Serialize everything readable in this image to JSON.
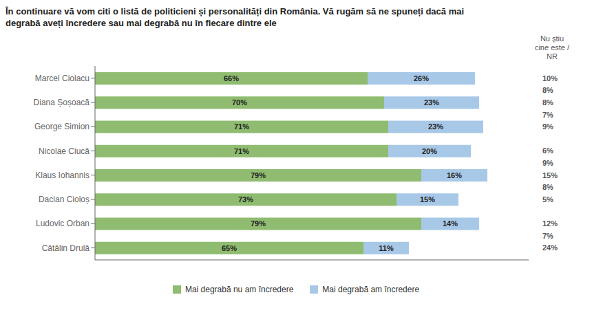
{
  "chart_data": {
    "type": "bar",
    "orientation": "horizontal",
    "stacked": true,
    "data_labels": true,
    "tick_labels": "y",
    "grid": false,
    "legend": "bottom",
    "title": "În continuare vă vom citi o listă de politicieni și personalități din România. Vă rugăm să ne spuneți dacă mai\ndegrabă aveți încredere sau mai degrabă nu în fiecare dintre ele",
    "categories": [
      "Marcel Ciolacu",
      "Diana Șoșoacă",
      "George Simion",
      "Nicolae Ciucă",
      "Klaus Iohannis",
      "Dacian Cioloș",
      "Ludovic Orban",
      "Cătălin Drulă"
    ],
    "series": [
      {
        "name": "Mai degrabă nu am încredere",
        "color": "#8fbc70",
        "values": [
          66,
          70,
          71,
          71,
          79,
          73,
          79,
          65
        ],
        "value_labels": [
          "66%",
          "70%",
          "71%",
          "71%",
          "79%",
          "73%",
          "79%",
          "65%"
        ]
      },
      {
        "name": "Mai degrabă am încredere",
        "color": "#a8c8e8",
        "values": [
          26,
          23,
          23,
          20,
          16,
          15,
          14,
          11
        ],
        "value_labels": [
          "26%",
          "23%",
          "23%",
          "20%",
          "16%",
          "15%",
          "14%",
          "11%"
        ]
      }
    ],
    "xlim": [
      0,
      105
    ],
    "annotations": {
      "header": "Nu știu\ncine este /\nNR",
      "row_values": [
        "10%",
        "8%",
        "9%",
        "6%",
        "15%",
        "5%",
        "12%",
        "24%"
      ],
      "between_row_values": [
        "8%",
        "7%",
        null,
        "9%",
        "8%",
        null,
        "7%"
      ]
    }
  }
}
